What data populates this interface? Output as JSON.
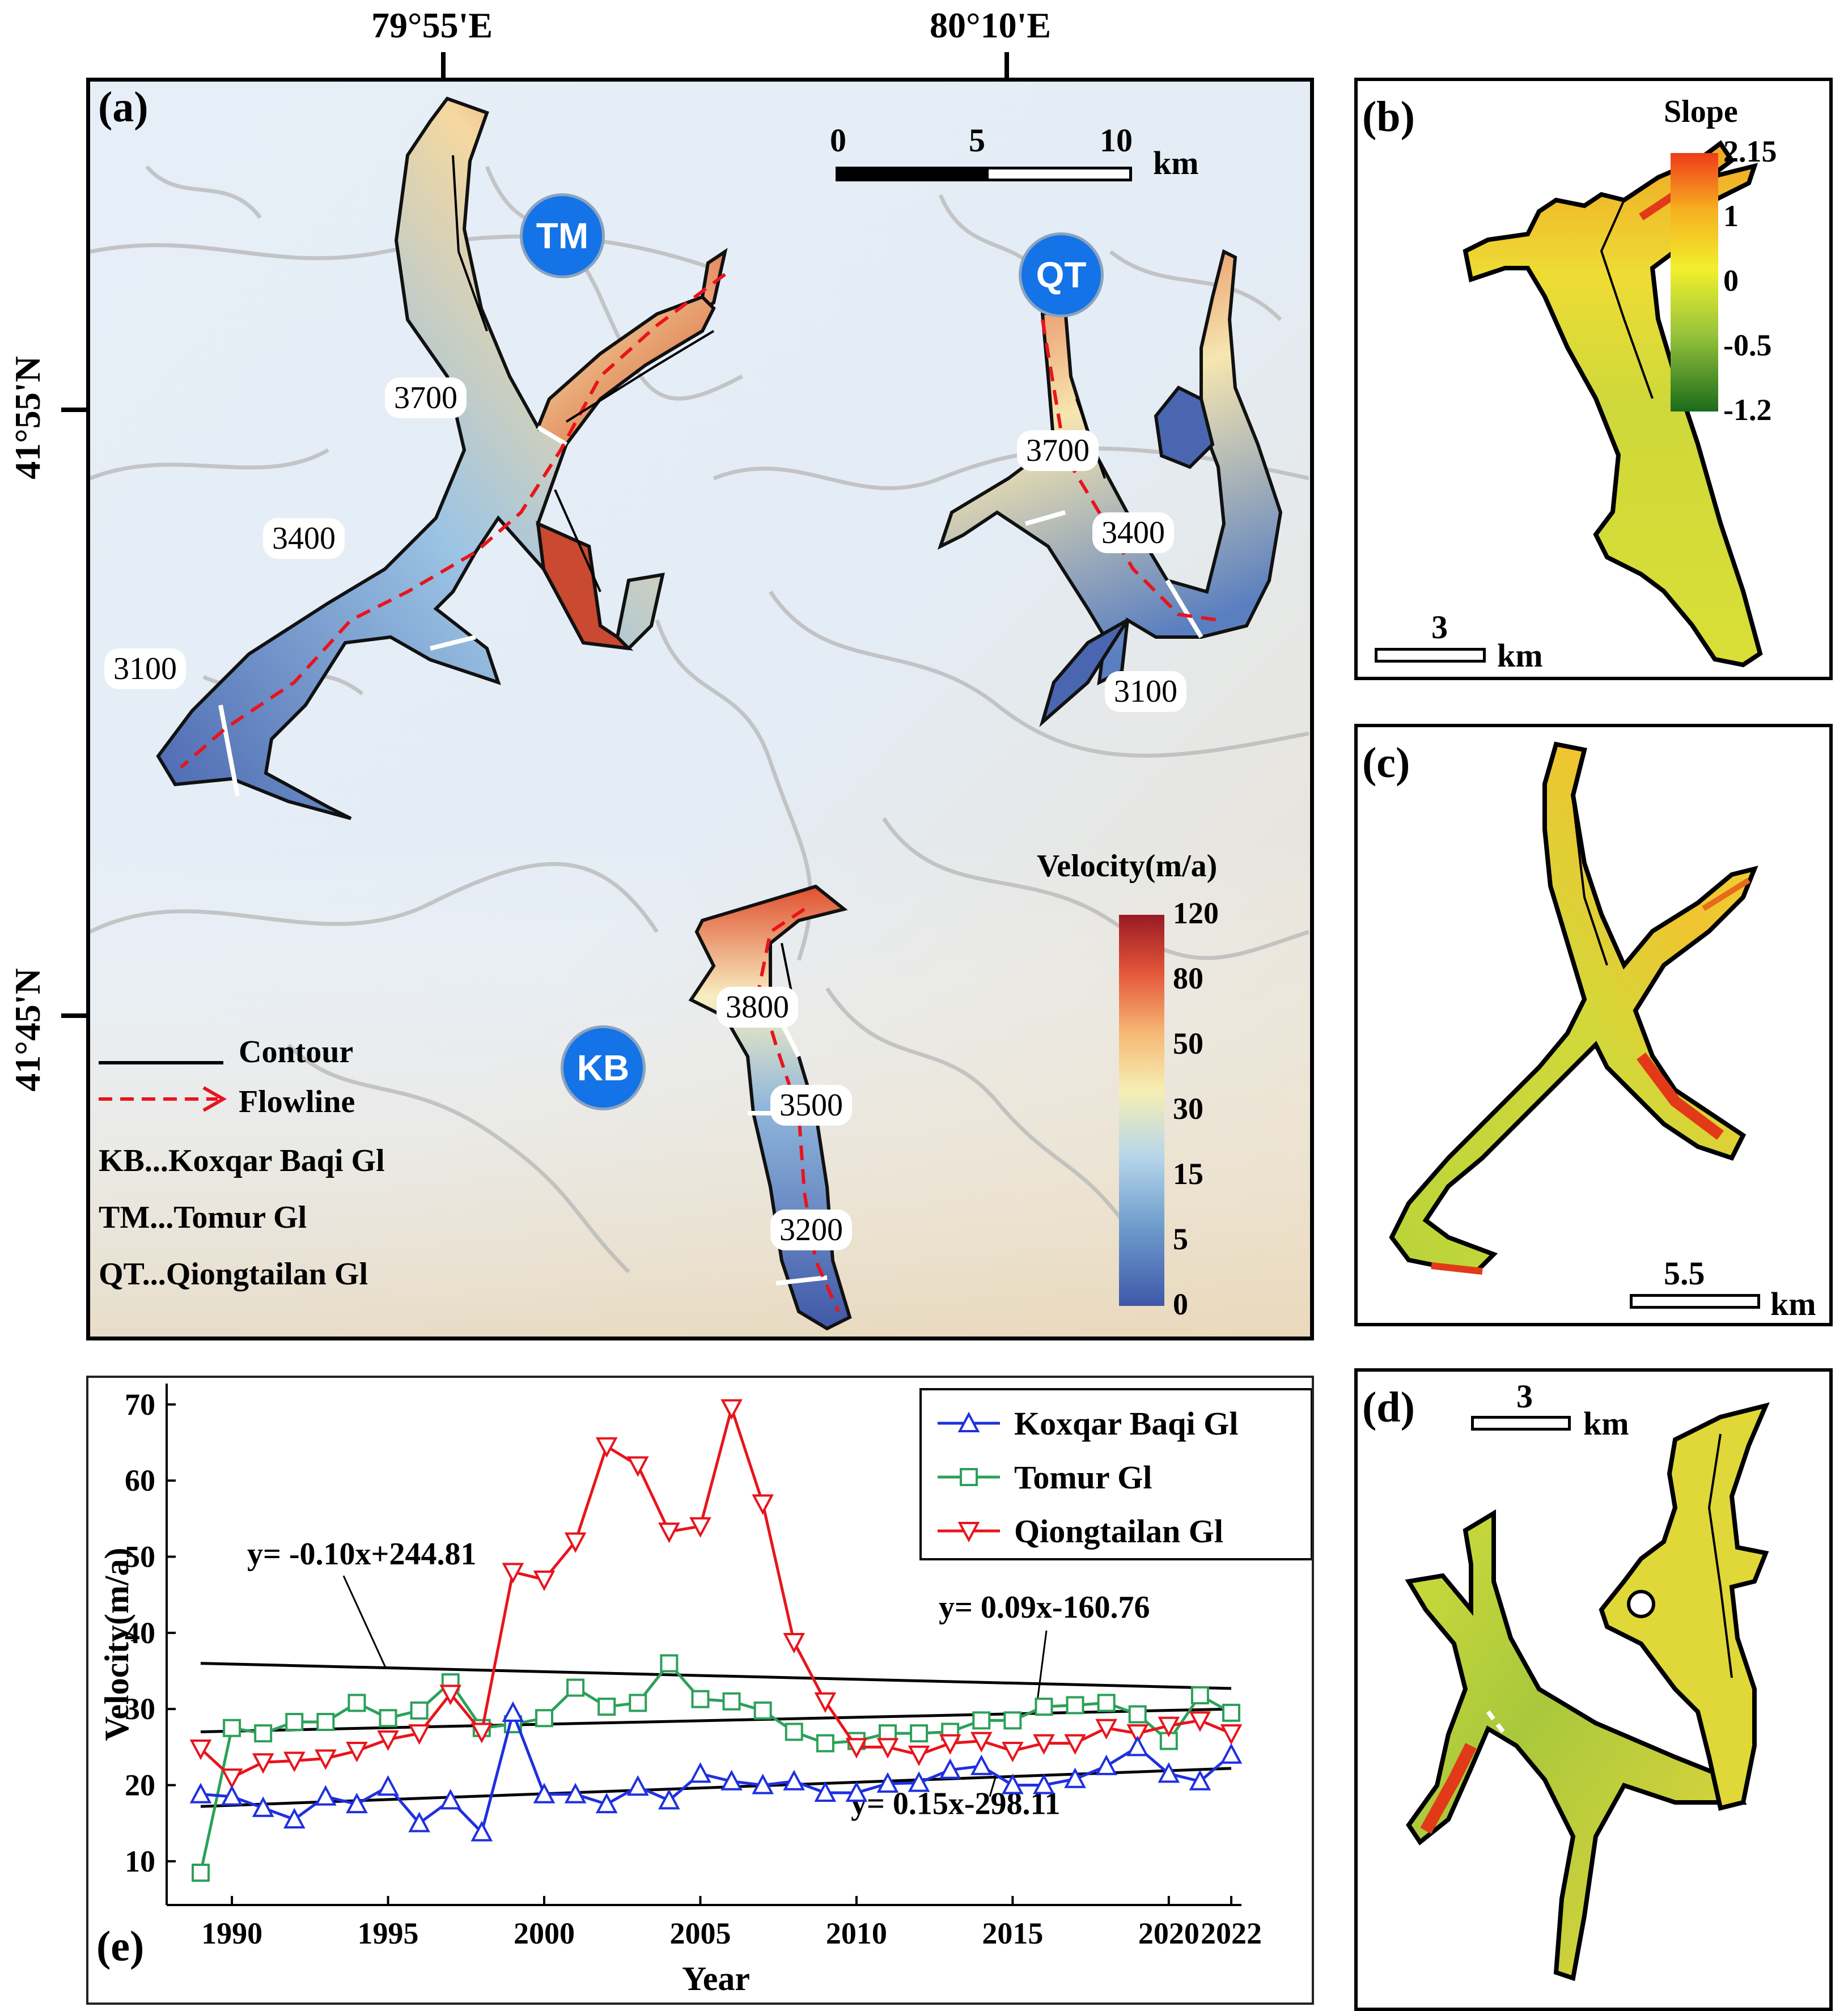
{
  "panel_a": {
    "label": "(a)",
    "coords": {
      "lon1": "79°55'E",
      "lon2": "80°10'E",
      "lat1": "41°55'N",
      "lat2": "41°45'N"
    },
    "scalebar": {
      "t0": "0",
      "t5": "5",
      "t10": "10",
      "unit": "km"
    },
    "glaciers": {
      "tm": "TM",
      "qt": "QT",
      "kb": "KB"
    },
    "elevations": {
      "tm_3700": "3700",
      "tm_3400": "3400",
      "tm_3100": "3100",
      "qt_3700": "3700",
      "qt_3400": "3400",
      "qt_3100": "3100",
      "kb_3800": "3800",
      "kb_3500": "3500",
      "kb_3200": "3200"
    },
    "legend": {
      "contour": "Contour",
      "flowline": "Flowline",
      "kb": "KB...Koxqar Baqi Gl",
      "tm": "TM...Tomur Gl",
      "qt": "QT...Qiongtailan Gl"
    },
    "colorbar": {
      "title": "Velocity(m/a)",
      "ticks": [
        "120",
        "80",
        "50",
        "30",
        "15",
        "5",
        "0"
      ]
    }
  },
  "panel_b": {
    "label": "(b)",
    "colorbar": {
      "title": "Slope",
      "ticks": [
        "2.15",
        "1",
        "0",
        "-0.5",
        "-1.2"
      ]
    },
    "scalebar": {
      "value": "3",
      "unit": "km"
    }
  },
  "panel_c": {
    "label": "(c)",
    "scalebar": {
      "value": "5.5",
      "unit": "km"
    }
  },
  "panel_d": {
    "label": "(d)",
    "scalebar": {
      "value": "3",
      "unit": "km"
    }
  },
  "panel_e": {
    "label": "(e)",
    "chart_data": {
      "type": "line",
      "xlabel": "Year",
      "ylabel": "Velocity(m/a)",
      "xlim": [
        1989,
        2022
      ],
      "ylim": [
        5,
        72
      ],
      "xticks": [
        1990,
        1995,
        2000,
        2005,
        2010,
        2015,
        2020,
        2022
      ],
      "yticks": [
        10,
        20,
        30,
        40,
        50,
        60,
        70
      ],
      "x": [
        1989,
        1990,
        1991,
        1992,
        1993,
        1994,
        1995,
        1996,
        1997,
        1998,
        1999,
        2000,
        2001,
        2002,
        2003,
        2004,
        2005,
        2006,
        2007,
        2008,
        2009,
        2010,
        2011,
        2012,
        2013,
        2014,
        2015,
        2016,
        2017,
        2018,
        2019,
        2020,
        2021,
        2022
      ],
      "series": [
        {
          "name": "Koxqar Baqi Gl",
          "color": "#1f2fe0",
          "marker": "triangle-up",
          "values": [
            18.8,
            18.5,
            17.0,
            15.5,
            18.5,
            17.5,
            19.8,
            15.0,
            18.0,
            13.8,
            29.5,
            18.8,
            18.8,
            17.5,
            19.8,
            18.0,
            21.5,
            20.5,
            20.0,
            20.5,
            19.0,
            19.0,
            20.2,
            20.3,
            22.0,
            22.5,
            20.0,
            20.0,
            20.8,
            22.5,
            25.0,
            21.5,
            20.5,
            24.0
          ]
        },
        {
          "name": "Tomur Gl",
          "color": "#2ca05a",
          "marker": "square",
          "values": [
            8.5,
            27.5,
            26.8,
            28.3,
            28.3,
            30.8,
            28.8,
            29.8,
            33.5,
            27.5,
            28.0,
            28.8,
            32.8,
            30.3,
            30.8,
            36.0,
            31.3,
            31.0,
            29.8,
            27.0,
            25.5,
            25.8,
            26.8,
            26.8,
            27.0,
            28.5,
            28.5,
            30.3,
            30.5,
            30.8,
            29.3,
            25.8,
            31.8,
            29.5
          ]
        },
        {
          "name": "Qiongtailan Gl",
          "color": "#e8141c",
          "marker": "triangle-down",
          "values": [
            24.8,
            21.0,
            23.0,
            23.2,
            23.5,
            24.5,
            26.0,
            26.8,
            32.0,
            27.0,
            48.0,
            47.0,
            52.0,
            64.5,
            62.0,
            53.3,
            54.0,
            69.5,
            57.0,
            38.8,
            31.0,
            25.0,
            25.0,
            24.0,
            25.5,
            25.8,
            24.5,
            25.5,
            25.5,
            27.5,
            26.8,
            27.8,
            28.5,
            26.8
          ]
        }
      ],
      "trendlines": [
        {
          "label": "y= -0.10x+244.81",
          "x": [
            1989,
            2022
          ],
          "y": [
            36.0,
            32.7
          ]
        },
        {
          "label": "y= 0.09x-160.76",
          "x": [
            1989,
            2022
          ],
          "y": [
            27.0,
            30.0
          ]
        },
        {
          "label": "y= 0.15x-298.11",
          "x": [
            1989,
            2022
          ],
          "y": [
            17.2,
            22.2
          ]
        }
      ]
    }
  },
  "colors": {
    "velocity_ramp": [
      "#3f58a8",
      "#6d9bcc",
      "#b6d5ea",
      "#f6efb4",
      "#f6b774",
      "#e4573a",
      "#9a1a23"
    ],
    "slope_ramp": [
      "#1b6b1b",
      "#98c43b",
      "#f2ef2c",
      "#f6b020",
      "#ef3b18"
    ],
    "badge": "#1473e6",
    "flowline": "#e8141c"
  }
}
